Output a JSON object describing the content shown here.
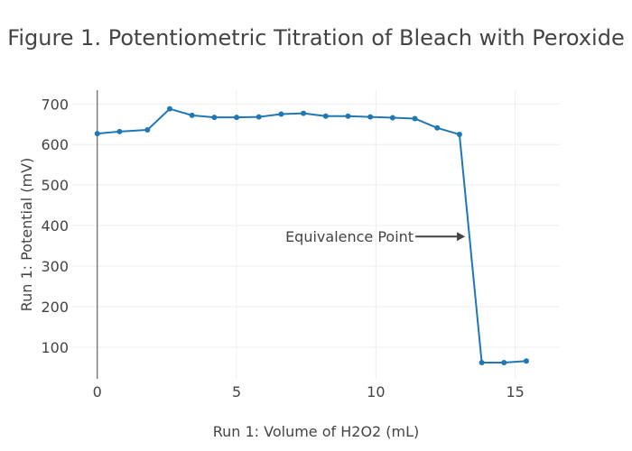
{
  "chart_data": {
    "type": "line",
    "title": "Figure 1. Potentiometric Titration of Bleach with Peroxide",
    "xlabel": "Run 1: Volume of H2O2 (mL)",
    "ylabel": "Run 1: Potential (mV)",
    "xlim": [
      -0.9,
      16.6
    ],
    "ylim": [
      22,
      734
    ],
    "xticks": [
      0,
      5,
      10,
      15
    ],
    "yticks": [
      100,
      200,
      300,
      400,
      500,
      600,
      700
    ],
    "grid": true,
    "series": [
      {
        "name": "Run 1",
        "color": "#1f77b4",
        "x": [
          0,
          0.8,
          1.8,
          2.6,
          3.4,
          4.2,
          5.0,
          5.8,
          6.6,
          7.4,
          8.2,
          9.0,
          9.8,
          10.6,
          11.4,
          12.2,
          13.0,
          13.8,
          14.6,
          15.4
        ],
        "y": [
          627,
          632,
          636,
          688,
          672,
          667,
          667,
          668,
          675,
          677,
          670,
          670,
          668,
          666,
          664,
          641,
          625,
          62,
          62,
          66
        ]
      }
    ],
    "annotations": [
      {
        "text": "Equivalence Point",
        "x": 13.2,
        "y": 373,
        "arrow": true
      }
    ]
  }
}
